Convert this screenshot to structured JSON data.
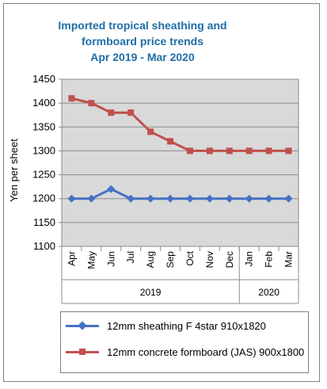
{
  "chart_data": {
    "type": "line",
    "title": [
      "Imported tropical sheathing and",
      "formboard price trends",
      "Apr 2019 -  Mar 2020"
    ],
    "ylabel": "Yen per sheet",
    "ylim": [
      1100,
      1450
    ],
    "yticks": [
      1100,
      1150,
      1200,
      1250,
      1300,
      1350,
      1400,
      1450
    ],
    "categories": [
      "Apr",
      "May",
      "Jun",
      "Jul",
      "Aug",
      "Sep",
      "Oct",
      "Nov",
      "Dec",
      "Jan",
      "Feb",
      "Mar"
    ],
    "year_groups": [
      {
        "label": "2019",
        "count": 9
      },
      {
        "label": "2020",
        "count": 3
      }
    ],
    "grid": true,
    "legend_position": "bottom",
    "series": [
      {
        "name": "12mm sheathing F 4star 910x1820",
        "color": "#4472c4",
        "marker": "diamond",
        "values": [
          1200,
          1200,
          1220,
          1200,
          1200,
          1200,
          1200,
          1200,
          1200,
          1200,
          1200,
          1200
        ]
      },
      {
        "name": "12mm concrete formboard (JAS) 900x1800",
        "color": "#c0504d",
        "marker": "square",
        "values": [
          1410,
          1400,
          1380,
          1380,
          1340,
          1320,
          1300,
          1300,
          1300,
          1300,
          1300,
          1300
        ]
      }
    ]
  }
}
